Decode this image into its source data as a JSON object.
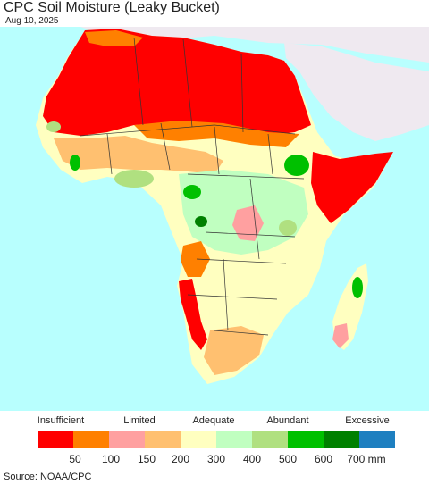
{
  "header": {
    "title": "CPC Soil Moisture (Leaky Bucket)",
    "date": "Aug 10, 2025"
  },
  "legend": {
    "categories": [
      "Insufficient",
      "Limited",
      "Adequate",
      "Abundant",
      "Excessive"
    ],
    "ticks": [
      "50",
      "100",
      "150",
      "200",
      "300",
      "400",
      "500",
      "600",
      "700 mm"
    ],
    "colors": [
      "#ff0000",
      "#ff8000",
      "#ffa0a0",
      "#ffc070",
      "#ffffc0",
      "#c0ffc0",
      "#b0e080",
      "#00c000",
      "#008000",
      "#1e7fc0"
    ]
  },
  "footer": {
    "source": "Source: NOAA/CPC"
  },
  "map_colors": {
    "ocean": "#b8fffe",
    "other_land": "#efe9f0",
    "dry": "#ff0000",
    "orange": "#ff8000",
    "pink": "#ffa0a0",
    "tan": "#ffc070",
    "pale_yellow": "#ffffc0",
    "pale_green": "#c0ffc0",
    "light_green": "#b0e080",
    "green": "#00c000",
    "dark_green": "#008000"
  }
}
